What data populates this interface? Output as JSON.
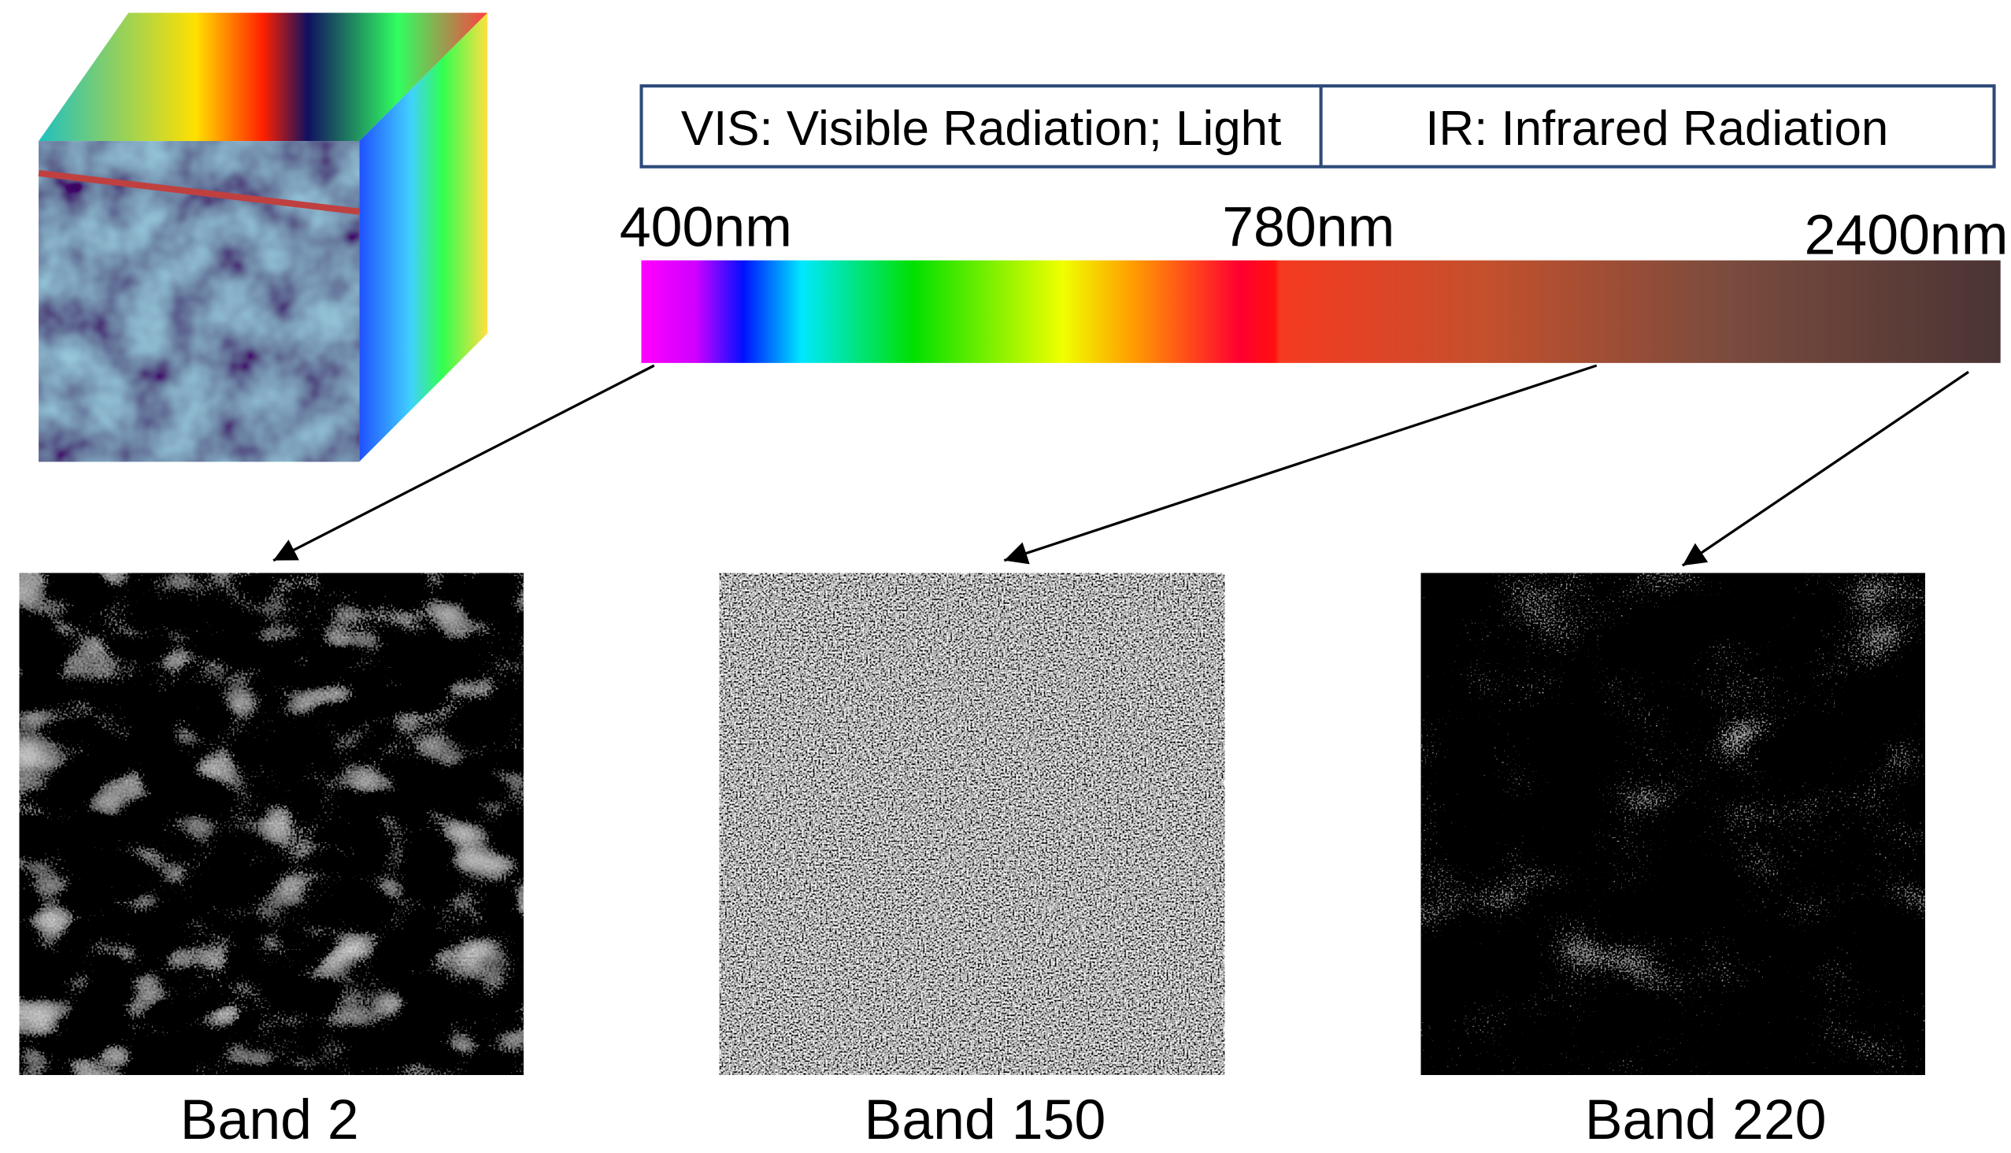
{
  "spectrum": {
    "regions": [
      "VIS: Visible Radiation; Light",
      "IR: Infrared Radiation"
    ],
    "wavelengths": [
      "400nm",
      "780nm",
      "2400nm"
    ]
  },
  "bands": [
    "Band 2",
    "Band 150",
    "Band 220"
  ]
}
